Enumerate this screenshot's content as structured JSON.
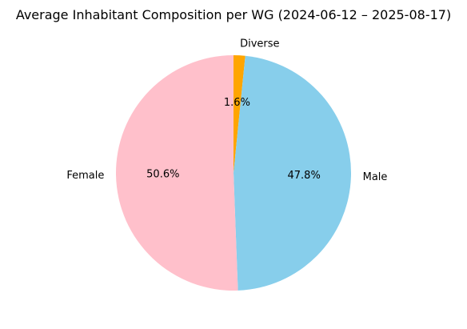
{
  "chart_data": {
    "type": "pie",
    "title": "Average Inhabitant Composition per WG (2024-06-12 – 2025-08-17)",
    "categories": [
      "Diverse",
      "Male",
      "Female"
    ],
    "values": [
      1.6,
      47.8,
      50.6
    ],
    "value_labels": [
      "1.6%",
      "47.8%",
      "50.6%"
    ],
    "colors": [
      "#FFA500",
      "#87CEEB",
      "#FFC0CB"
    ],
    "start_angle_deg": 90,
    "direction": "clockwise",
    "legend": "none"
  }
}
